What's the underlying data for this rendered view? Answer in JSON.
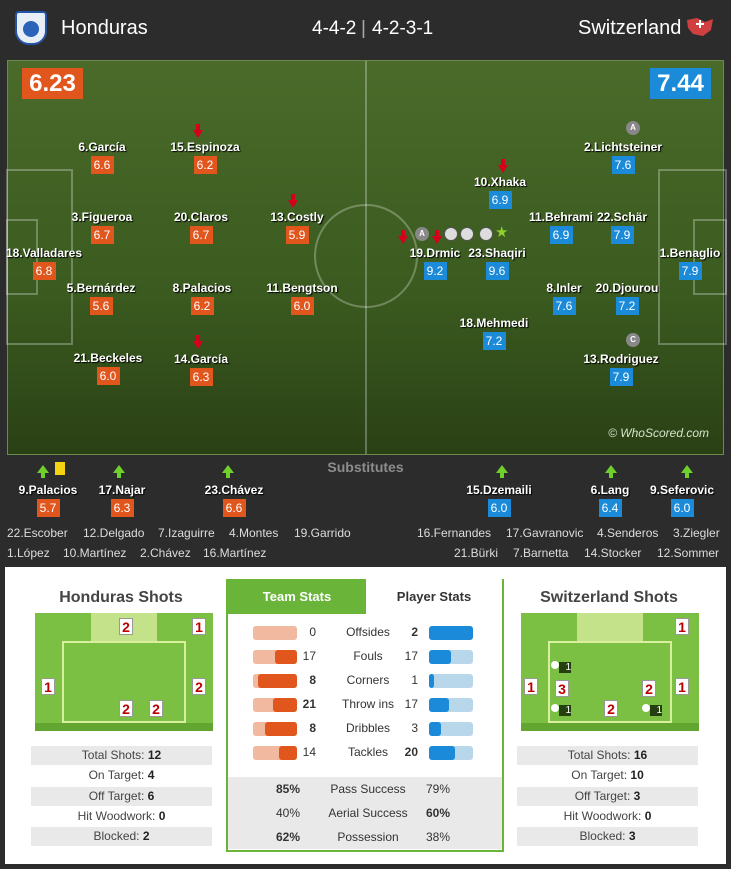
{
  "header": {
    "home_team": "Honduras",
    "away_team": "Switzerland",
    "home_formation": "4-4-2",
    "away_formation": "4-2-3-1",
    "separator": "|"
  },
  "colors": {
    "home": "#e0561c",
    "away": "#1a8ad9",
    "pitch": "#3a5a1f",
    "tab_active": "#6ab43a"
  },
  "ratings": {
    "home": "6.23",
    "away": "7.44"
  },
  "home_players": [
    {
      "name": "6.García",
      "rating": "6.6"
    },
    {
      "name": "15.Espinoza",
      "rating": "6.2"
    },
    {
      "name": "3.Figueroa",
      "rating": "6.7"
    },
    {
      "name": "20.Claros",
      "rating": "6.7"
    },
    {
      "name": "13.Costly",
      "rating": "5.9"
    },
    {
      "name": "18.Valladares",
      "rating": "6.8"
    },
    {
      "name": "5.Bernárdez",
      "rating": "5.6"
    },
    {
      "name": "8.Palacios",
      "rating": "6.2"
    },
    {
      "name": "11.Bengtson",
      "rating": "6.0"
    },
    {
      "name": "21.Beckeles",
      "rating": "6.0"
    },
    {
      "name": "14.García",
      "rating": "6.3"
    }
  ],
  "away_players": [
    {
      "name": "2.Lichtsteiner",
      "rating": "7.6"
    },
    {
      "name": "10.Xhaka",
      "rating": "6.9"
    },
    {
      "name": "11.Behrami",
      "rating": "6.9"
    },
    {
      "name": "22.Schär",
      "rating": "7.9"
    },
    {
      "name": "19.Drmic",
      "rating": "9.2"
    },
    {
      "name": "23.Shaqiri",
      "rating": "9.6"
    },
    {
      "name": "1.Benaglio",
      "rating": "7.9"
    },
    {
      "name": "8.Inler",
      "rating": "7.6"
    },
    {
      "name": "20.Djourou",
      "rating": "7.2"
    },
    {
      "name": "18.Mehmedi",
      "rating": "7.2"
    },
    {
      "name": "13.Rodriguez",
      "rating": "7.9"
    }
  ],
  "badges": {
    "assist": "A",
    "captain": "C"
  },
  "copyright": "© WhoScored.com",
  "substitutes": {
    "title": "Substitutes",
    "home_used": [
      {
        "name": "9.Palacios",
        "rating": "5.7"
      },
      {
        "name": "17.Najar",
        "rating": "6.3"
      },
      {
        "name": "23.Chávez",
        "rating": "6.6"
      }
    ],
    "away_used": [
      {
        "name": "15.Dzemaili",
        "rating": "6.0"
      },
      {
        "name": "6.Lang",
        "rating": "6.4"
      },
      {
        "name": "9.Seferovic",
        "rating": "6.0"
      }
    ],
    "home_bench": [
      "22.Escober",
      "12.Delgado",
      "7.Izaguirre",
      "4.Montes",
      "19.Garrido",
      "1.López",
      "10.Martínez",
      "2.Chávez",
      "16.Martínez"
    ],
    "away_bench": [
      "16.Fernandes",
      "17.Gavranovic",
      "4.Senderos",
      "3.Ziegler",
      "21.Bürki",
      "7.Barnetta",
      "14.Stocker",
      "12.Sommer"
    ]
  },
  "home_shots": {
    "title": "Honduras Shots",
    "zones": [
      "2",
      "1",
      "1",
      "2",
      "2",
      "2"
    ],
    "summary": [
      {
        "label": "Total Shots:",
        "value": "12"
      },
      {
        "label": "On Target:",
        "value": "4"
      },
      {
        "label": "Off Target:",
        "value": "6"
      },
      {
        "label": "Hit Woodwork:",
        "value": "0"
      },
      {
        "label": "Blocked:",
        "value": "2"
      }
    ]
  },
  "away_shots": {
    "title": "Switzerland Shots",
    "zones": [
      "1",
      "1",
      "3",
      "2",
      "1",
      "2"
    ],
    "blocked": [
      "1",
      "1",
      "1"
    ],
    "summary": [
      {
        "label": "Total Shots:",
        "value": "16"
      },
      {
        "label": "On Target:",
        "value": "10"
      },
      {
        "label": "Off Target:",
        "value": "3"
      },
      {
        "label": "Hit Woodwork:",
        "value": "0"
      },
      {
        "label": "Blocked:",
        "value": "3"
      }
    ]
  },
  "team_stats": {
    "tabs": [
      "Team Stats",
      "Player Stats"
    ],
    "rows": [
      {
        "label": "Offsides",
        "home": "0",
        "away": "2",
        "home_bar": 0.0,
        "away_bar": 1.0
      },
      {
        "label": "Fouls",
        "home": "17",
        "away": "17",
        "home_bar": 0.5,
        "away_bar": 0.5
      },
      {
        "label": "Corners",
        "home": "8",
        "away": "1",
        "home_bar": 0.89,
        "away_bar": 0.11
      },
      {
        "label": "Throw ins",
        "home": "21",
        "away": "17",
        "home_bar": 0.55,
        "away_bar": 0.45
      },
      {
        "label": "Dribbles",
        "home": "8",
        "away": "3",
        "home_bar": 0.73,
        "away_bar": 0.27
      },
      {
        "label": "Tackles",
        "home": "14",
        "away": "20",
        "home_bar": 0.41,
        "away_bar": 0.59
      }
    ],
    "pct_rows": [
      {
        "label": "Pass Success",
        "home": "85%",
        "away": "79%"
      },
      {
        "label": "Aerial Success",
        "home": "40%",
        "away": "60%"
      },
      {
        "label": "Possession",
        "home": "62%",
        "away": "38%"
      }
    ]
  }
}
